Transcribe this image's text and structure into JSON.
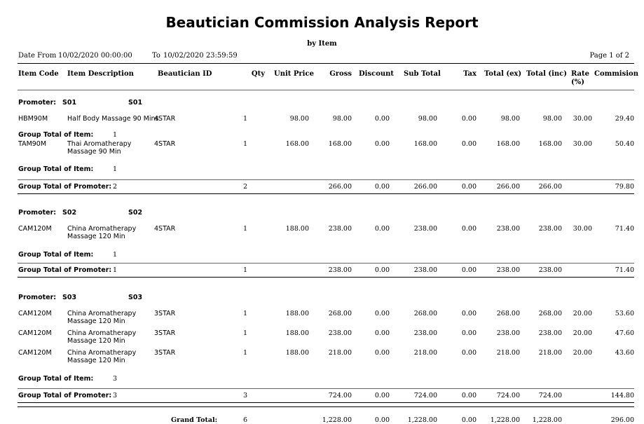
{
  "report": {
    "title": "Beautician Commission Analysis Report",
    "subtitle": "by Item",
    "date_from_label": "Date From",
    "date_from": "10/02/2020 00:00:00",
    "to_label": "To",
    "date_to": "10/02/2020 23:59:59",
    "page": "Page 1 of 2"
  },
  "columns": {
    "item_code": "Item Code",
    "item_desc": "Item Description",
    "beautician": "Beautician ID",
    "qty": "Qty",
    "unit_price": "Unit Price",
    "gross": "Gross",
    "discount": "Discount",
    "subtotal": "Sub Total",
    "tax": "Tax",
    "total_ex": "Total (ex)",
    "total_inc": "Total (inc)",
    "rate": "Rate\n(%)",
    "commission": "Commision"
  },
  "labels": {
    "promoter": "Promoter:",
    "group_item": "Group Total of Item:",
    "group_promoter": "Group Total of Promoter:",
    "grand_total": "Grand Total:"
  },
  "promoters": [
    {
      "code": "S01",
      "name": "S01",
      "items": [
        {
          "code": "HBM90M",
          "desc": "Half Body Massage 90 Mins",
          "beautician": "4STAR",
          "qty": "1",
          "unit_price": "98.00",
          "gross": "98.00",
          "discount": "0.00",
          "subtotal": "98.00",
          "tax": "0.00",
          "total_ex": "98.00",
          "total_inc": "98.00",
          "rate": "30.00",
          "commission": "29.40"
        },
        {
          "code": "TAM90M",
          "desc": "Thai Aromatherapy\nMassage 90 Min",
          "beautician": "4STAR",
          "qty": "1",
          "unit_price": "168.00",
          "gross": "168.00",
          "discount": "0.00",
          "subtotal": "168.00",
          "tax": "0.00",
          "total_ex": "168.00",
          "total_inc": "168.00",
          "rate": "30.00",
          "commission": "50.40"
        }
      ],
      "item_group_counts": [
        "1",
        "1"
      ],
      "total": {
        "count": "2",
        "qty": "2",
        "gross": "266.00",
        "discount": "0.00",
        "subtotal": "266.00",
        "tax": "0.00",
        "total_ex": "266.00",
        "total_inc": "266.00",
        "commission": "79.80"
      }
    },
    {
      "code": "S02",
      "name": "S02",
      "items": [
        {
          "code": "CAM120M",
          "desc": "China Aromatherapy\nMassage 120 Min",
          "beautician": "4STAR",
          "qty": "1",
          "unit_price": "188.00",
          "gross": "238.00",
          "discount": "0.00",
          "subtotal": "238.00",
          "tax": "0.00",
          "total_ex": "238.00",
          "total_inc": "238.00",
          "rate": "30.00",
          "commission": "71.40"
        }
      ],
      "item_group_counts": [
        "1"
      ],
      "total": {
        "count": "1",
        "qty": "1",
        "gross": "238.00",
        "discount": "0.00",
        "subtotal": "238.00",
        "tax": "0.00",
        "total_ex": "238.00",
        "total_inc": "238.00",
        "commission": "71.40"
      }
    },
    {
      "code": "S03",
      "name": "S03",
      "items": [
        {
          "code": "CAM120M",
          "desc": "China Aromatherapy\nMassage 120 Min",
          "beautician": "3STAR",
          "qty": "1",
          "unit_price": "188.00",
          "gross": "268.00",
          "discount": "0.00",
          "subtotal": "268.00",
          "tax": "0.00",
          "total_ex": "268.00",
          "total_inc": "268.00",
          "rate": "20.00",
          "commission": "53.60"
        },
        {
          "code": "CAM120M",
          "desc": "China Aromatherapy\nMassage 120 Min",
          "beautician": "3STAR",
          "qty": "1",
          "unit_price": "188.00",
          "gross": "238.00",
          "discount": "0.00",
          "subtotal": "238.00",
          "tax": "0.00",
          "total_ex": "238.00",
          "total_inc": "238.00",
          "rate": "20.00",
          "commission": "47.60"
        },
        {
          "code": "CAM120M",
          "desc": "China Aromatherapy\nMassage 120 Min",
          "beautician": "3STAR",
          "qty": "1",
          "unit_price": "188.00",
          "gross": "218.00",
          "discount": "0.00",
          "subtotal": "218.00",
          "tax": "0.00",
          "total_ex": "218.00",
          "total_inc": "218.00",
          "rate": "20.00",
          "commission": "43.60"
        }
      ],
      "item_group_counts": [
        "3"
      ],
      "total": {
        "count": "3",
        "qty": "3",
        "gross": "724.00",
        "discount": "0.00",
        "subtotal": "724.00",
        "tax": "0.00",
        "total_ex": "724.00",
        "total_inc": "724.00",
        "commission": "144.80"
      }
    }
  ],
  "grand_total": {
    "qty": "6",
    "gross": "1,228.00",
    "discount": "0.00",
    "subtotal": "1,228.00",
    "tax": "0.00",
    "total_ex": "1,228.00",
    "total_inc": "1,228.00",
    "commission": "296.00"
  }
}
